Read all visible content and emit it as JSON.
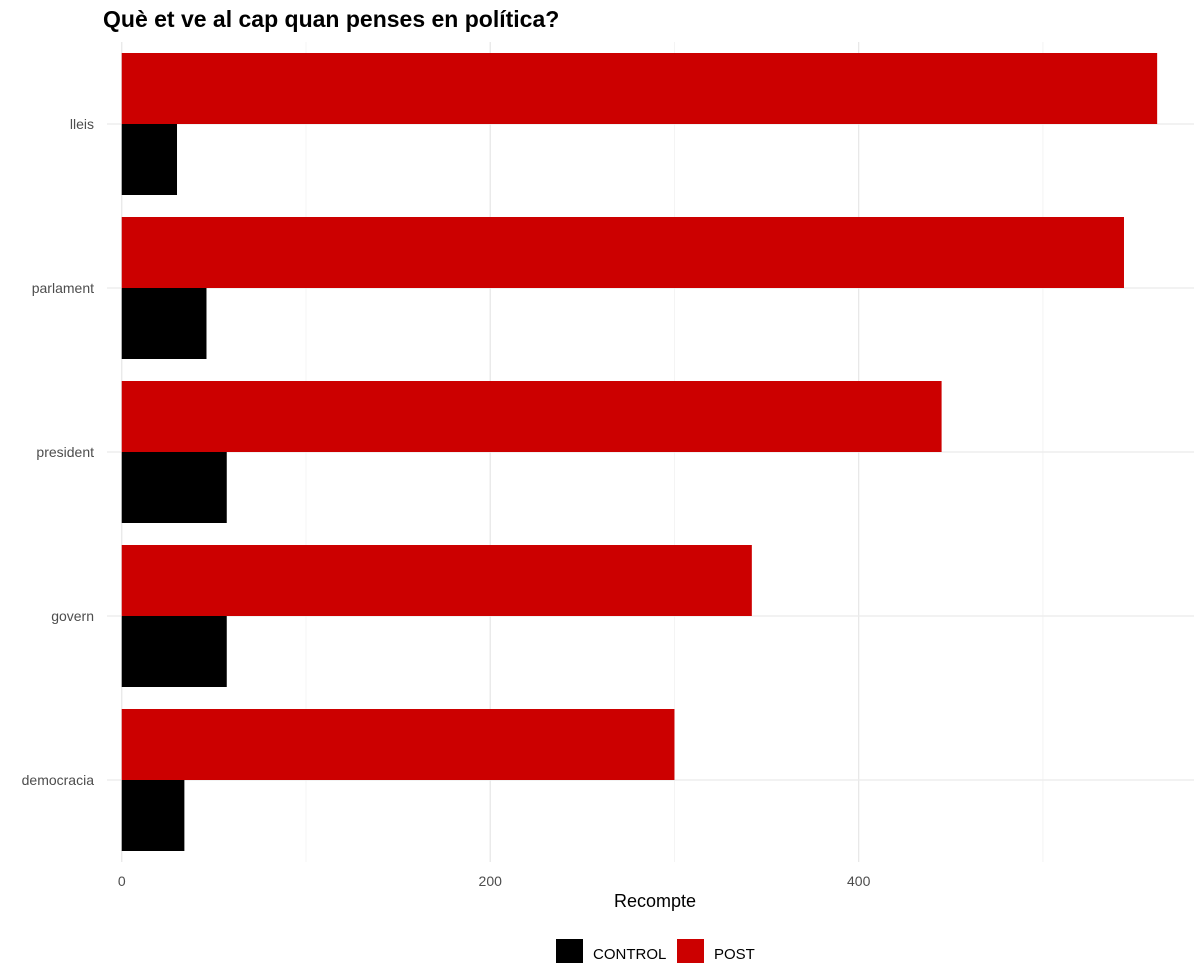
{
  "chart_data": {
    "type": "bar",
    "orientation": "horizontal",
    "title": "Què et ve al cap quan penses en política?",
    "xlabel": "Recompte",
    "ylabel": "",
    "categories": [
      "lleis",
      "parlament",
      "president",
      "govern",
      "democracia"
    ],
    "series": [
      {
        "name": "CONTROL",
        "color": "#000000",
        "values": [
          30,
          46,
          57,
          57,
          34
        ]
      },
      {
        "name": "POST",
        "color": "#cc0000",
        "values": [
          562,
          544,
          445,
          342,
          300
        ]
      }
    ],
    "xlim": [
      -8,
      582
    ],
    "xticks": [
      0,
      200,
      400
    ],
    "grid": true,
    "legend": "bottom"
  }
}
